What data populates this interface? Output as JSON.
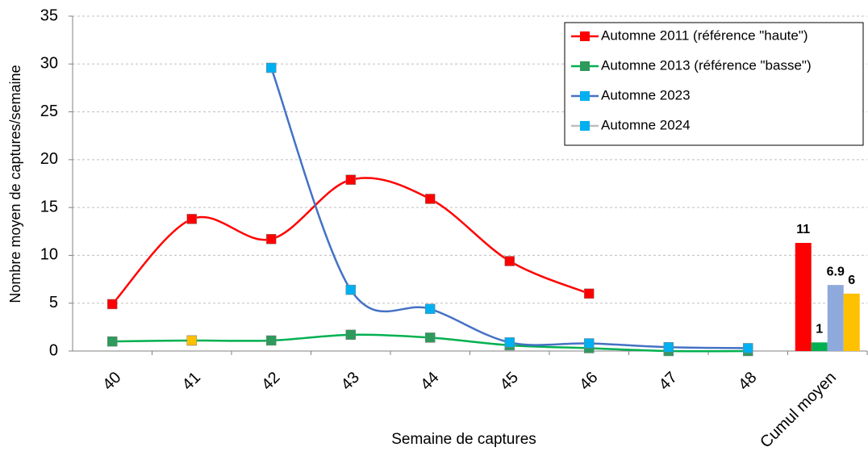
{
  "chart_data": {
    "type": "line",
    "y_label": "Nombre moyen de captures/semaine",
    "x_label": "Semaine de captures",
    "categories": [
      "40",
      "41",
      "42",
      "43",
      "44",
      "45",
      "46",
      "47",
      "48",
      "Cumul moyen"
    ],
    "ylim": [
      0,
      35
    ],
    "yticks": [
      0,
      5,
      10,
      15,
      20,
      25,
      30,
      35
    ],
    "grid": true,
    "smooth": true,
    "legend": "top-right",
    "series": [
      {
        "name": "Automne 2011 (référence \"haute\")",
        "color": "#ff0000",
        "marker_color": "#ff0000",
        "legend_marker_color": "#ff0000",
        "bar_color": "#ff0000",
        "values": [
          4.9,
          13.8,
          11.7,
          17.9,
          15.9,
          9.4,
          6.0,
          null,
          null,
          null
        ],
        "bar_value": 11.3,
        "bar_label": "11"
      },
      {
        "name": "Automne 2013 (référence \"basse\")",
        "color": "#00b050",
        "marker_color": "#2e9a5c",
        "legend_marker_color": "#2e9a5c",
        "bar_color": "#00b050",
        "values": [
          1.0,
          1.1,
          1.1,
          1.7,
          1.4,
          0.6,
          0.3,
          0.0,
          0.0,
          null
        ],
        "bar_value": 0.9,
        "bar_label": "1"
      },
      {
        "name": "Automne 2023",
        "color": "#4472c4",
        "marker_color": "#00b0f0",
        "legend_marker_color": "#00b0f0",
        "bar_color": "#8ea9db",
        "values": [
          null,
          null,
          29.6,
          6.4,
          4.4,
          0.9,
          0.8,
          0.4,
          0.3,
          null
        ],
        "bar_value": 6.9,
        "bar_label": "6.9"
      },
      {
        "name": "Automne 2024",
        "color": "#bfbfbf",
        "marker_color": "#ffc000",
        "legend_marker_color": "#00b0f0",
        "bar_color": "#ffc000",
        "values": [
          null,
          1.1,
          null,
          null,
          null,
          null,
          null,
          null,
          null,
          null
        ],
        "bar_value": 6.0,
        "bar_label": "6"
      }
    ]
  }
}
